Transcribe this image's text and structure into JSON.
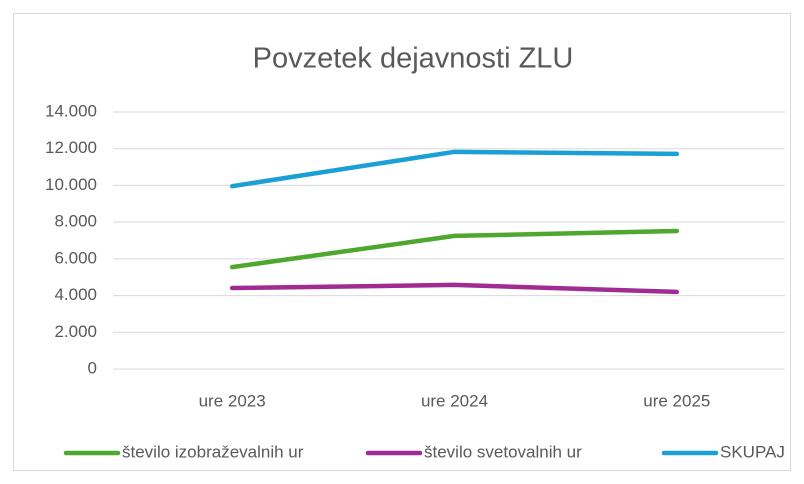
{
  "chart_data": {
    "type": "line",
    "title": "Povzetek dejavnosti  ZLU",
    "categories": [
      "ure 2023",
      "ure 2024",
      "ure 2025"
    ],
    "series": [
      {
        "name": "število izobraževalnih ur",
        "color": "#4ea72e",
        "values": [
          5550,
          7250,
          7520
        ]
      },
      {
        "name": "število svetovalnih ur",
        "color": "#a02b93",
        "values": [
          4410,
          4580,
          4200
        ]
      },
      {
        "name": "SKUPAJ",
        "color": "#1a9fd6",
        "values": [
          9960,
          11830,
          11720
        ]
      }
    ],
    "ylim": [
      0,
      14000
    ],
    "yticks": [
      0,
      {
        "value": 2000,
        "label": "2.000"
      },
      {
        "value": 4000,
        "label": "4.000"
      },
      {
        "value": 6000,
        "label": "6.000"
      },
      {
        "value": 8000,
        "label": "8.000"
      },
      {
        "value": 10000,
        "label": "10.000"
      },
      {
        "value": 12000,
        "label": "12.000"
      },
      {
        "value": 14000,
        "label": "14.000"
      }
    ],
    "grid": true,
    "legend": "bottom"
  }
}
